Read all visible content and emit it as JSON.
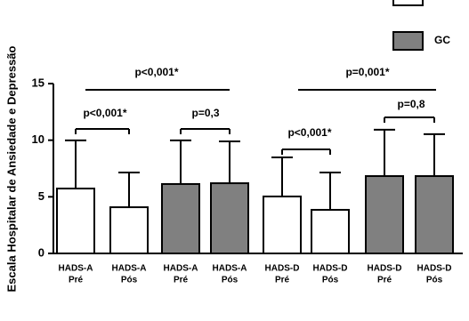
{
  "chart_data": {
    "type": "bar",
    "y_label": "Escala Hospitalar de Ansiedade e Depressão",
    "categories": [
      [
        "HADS-A",
        "Pré"
      ],
      [
        "HADS-A",
        "Pós"
      ],
      [
        "HADS-A",
        "Pré"
      ],
      [
        "HADS-A",
        "Pós"
      ],
      [
        "HADS-D",
        "Pré"
      ],
      [
        "HADS-D",
        "Pós"
      ],
      [
        "HADS-D",
        "Pré"
      ],
      [
        "HADS-D",
        "Pós"
      ]
    ],
    "series": [
      {
        "color": "#ffffff",
        "values": [
          5.73,
          4.08,
          null,
          null,
          5.03,
          3.85,
          null,
          null
        ],
        "errors": [
          4.25,
          3.07,
          null,
          null,
          3.45,
          3.3,
          null,
          null
        ]
      },
      {
        "name": "GC",
        "color": "#808080",
        "values": [
          null,
          null,
          6.13,
          6.2,
          null,
          null,
          6.83,
          6.83
        ],
        "errors": [
          null,
          null,
          3.85,
          3.7,
          null,
          null,
          4.1,
          3.7
        ]
      }
    ],
    "ylim": [
      0,
      15
    ],
    "yticks": [
      0,
      5,
      10,
      15
    ],
    "annotations": [
      "p<0,001*",
      "p=0,3",
      "p<0,001*",
      "p=0,8",
      "p<0,001*",
      "p=0,001*"
    ]
  }
}
